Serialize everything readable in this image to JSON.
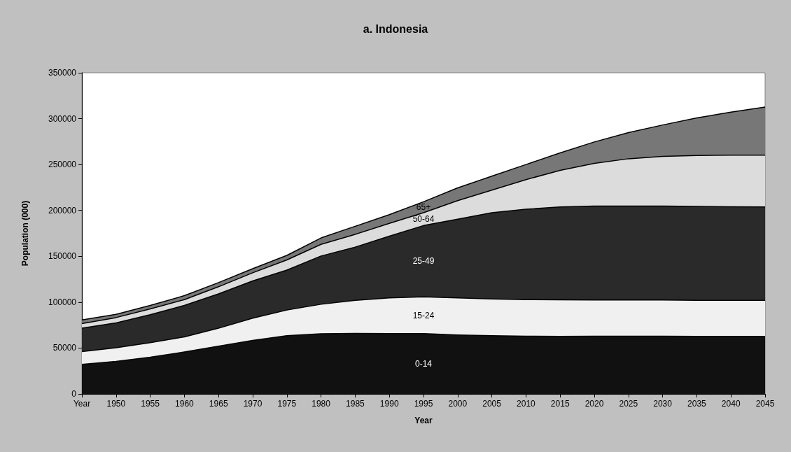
{
  "chart_data": {
    "type": "area",
    "stacked": true,
    "title": "a. Indonesia",
    "xlabel": "Year",
    "ylabel": "Population (000)",
    "categories": [
      "Year",
      "1950",
      "1955",
      "1960",
      "1965",
      "1970",
      "1975",
      "1980",
      "1985",
      "1990",
      "1995",
      "2000",
      "2005",
      "2010",
      "2015",
      "2020",
      "2025",
      "2030",
      "2035",
      "2040",
      "2045"
    ],
    "ylim": [
      0,
      350000
    ],
    "yticks": [
      0,
      50000,
      100000,
      150000,
      200000,
      250000,
      300000,
      350000
    ],
    "grid": false,
    "legend": false,
    "series": [
      {
        "name": "0-14",
        "color": "#111111",
        "values": [
          32200,
          35500,
          40000,
          45700,
          52000,
          58400,
          63500,
          65500,
          66000,
          65700,
          65700,
          64200,
          63500,
          62900,
          62700,
          62900,
          62900,
          62900,
          62700,
          62700,
          62700
        ]
      },
      {
        "name": "15-24",
        "color": "#f0f0f0",
        "values": [
          14000,
          14800,
          15800,
          16500,
          19600,
          24100,
          27900,
          32200,
          36000,
          38900,
          40100,
          40400,
          40100,
          39900,
          39800,
          39400,
          39400,
          39400,
          39300,
          39300,
          39300
        ]
      },
      {
        "name": "25-49",
        "color": "#2a2a2a",
        "values": [
          25400,
          27100,
          30500,
          34200,
          37500,
          40600,
          43600,
          52600,
          58000,
          67400,
          77700,
          85800,
          93900,
          98500,
          101300,
          102500,
          102500,
          102500,
          102300,
          102000,
          101800
        ]
      },
      {
        "name": "50-64",
        "color": "#dcdcdc",
        "values": [
          5000,
          5800,
          6300,
          6400,
          7700,
          8900,
          11000,
          12700,
          13900,
          13800,
          14000,
          20300,
          24600,
          32200,
          39900,
          46500,
          51500,
          54100,
          55600,
          56200,
          56400
        ]
      },
      {
        "name": "65+",
        "color": "#777777",
        "values": [
          4100,
          3600,
          3800,
          4300,
          4500,
          4500,
          5000,
          7000,
          8800,
          9600,
          11900,
          13900,
          15200,
          16500,
          19000,
          23300,
          28500,
          34200,
          40900,
          46900,
          52500
        ]
      }
    ]
  }
}
